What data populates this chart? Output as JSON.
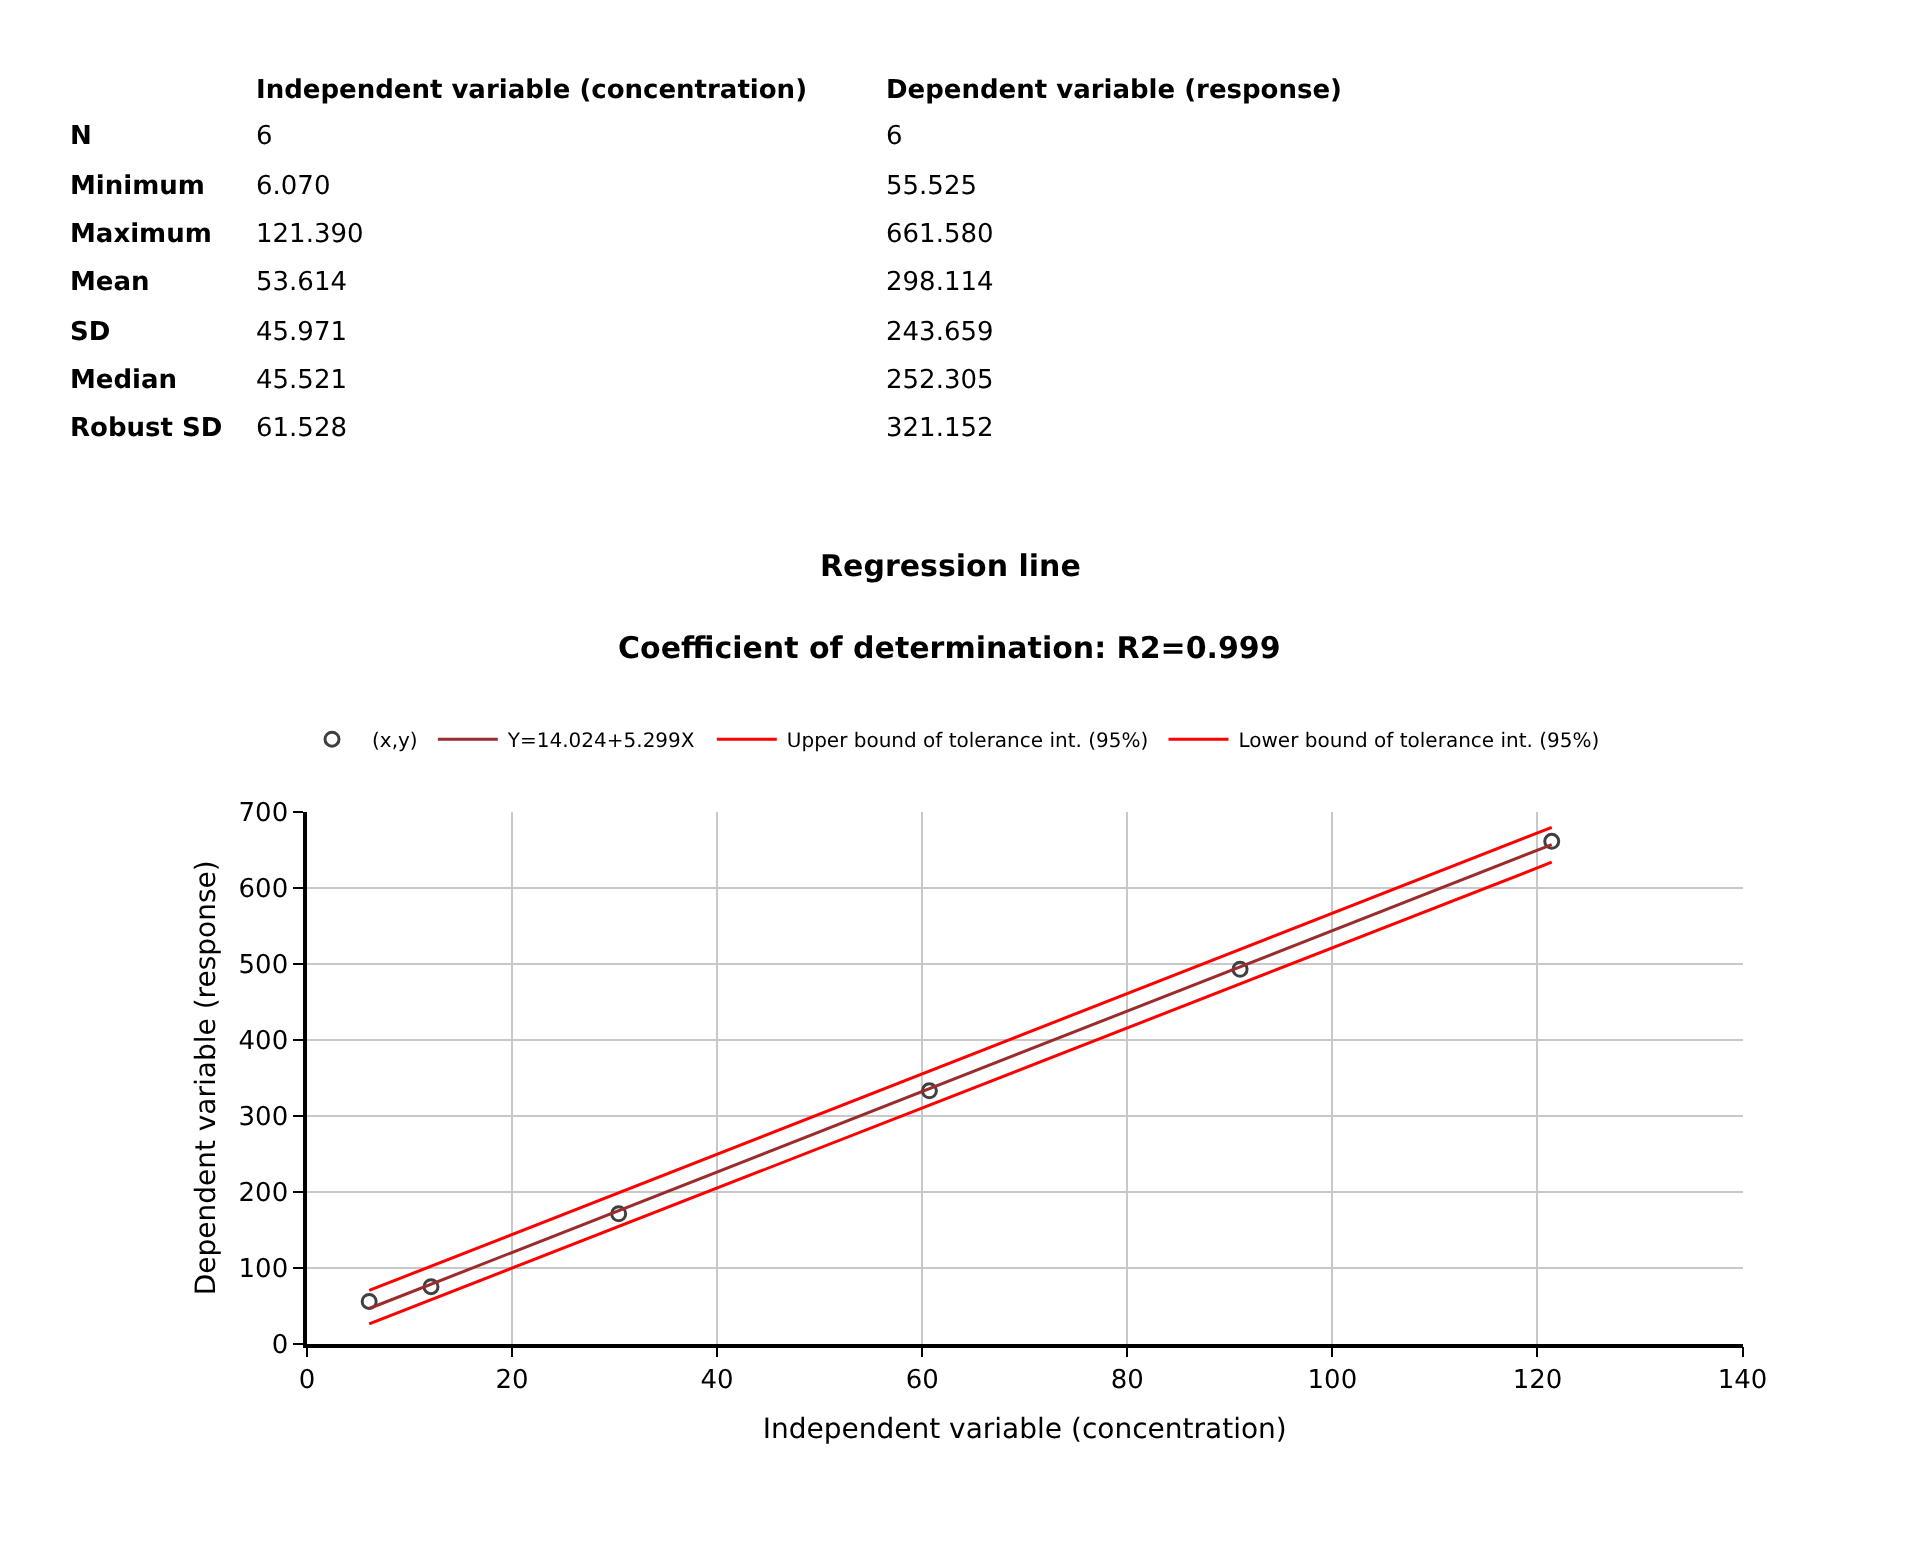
{
  "chart_data": [
    {
      "type": "other",
      "annotations": [
        "Independent variable (concentration)",
        "Dependent variable (response)",
        "N",
        "6",
        "6",
        "Minimum",
        "6.070",
        "55.525",
        "Maximum",
        "121.390",
        "661.580",
        "Mean",
        "53.614",
        "298.114",
        "SD",
        "45.971",
        "243.659",
        "Median",
        "45.521",
        "252.305",
        "Robust SD",
        "61.528",
        "321.152"
      ]
    },
    {
      "type": "scatter",
      "title": "Regression line",
      "subtitle": "Coefficient of determination: R2=0.999",
      "xlabel": "Independent variable (concentration)",
      "ylabel": "Dependent variable (response)",
      "xlim": [
        0,
        140
      ],
      "xticks": [
        0,
        20,
        40,
        60,
        80,
        100,
        120,
        140
      ],
      "ylim": [
        0,
        700
      ],
      "yticks": [
        0,
        100,
        200,
        300,
        400,
        500,
        600,
        700
      ],
      "grid": true,
      "legend": "top",
      "series": [
        {
          "name": "(x,y)",
          "type": "scatter",
          "marker": "circle",
          "color": "#404040",
          "x": [
            6.07,
            12.1,
            30.4,
            60.7,
            91.0,
            121.39
          ],
          "values": [
            55.5,
            75,
            171,
            333,
            493,
            661.6
          ]
        },
        {
          "name": "Y=14.024+5.299X",
          "type": "line",
          "marker": "none",
          "color": "#9b2c2c",
          "x": [
            6.07,
            121.39
          ],
          "values": [
            46.2,
            657.3
          ]
        },
        {
          "name": "Upper bound of tolerance int. (95%)",
          "type": "line",
          "marker": "none",
          "color": "#ff0000",
          "x": [
            6.07,
            121.39
          ],
          "values": [
            70,
            680
          ]
        },
        {
          "name": "Lower bound of tolerance int. (95%)",
          "type": "line",
          "marker": "none",
          "color": "#ff0000",
          "x": [
            6.07,
            121.39
          ],
          "values": [
            26,
            634
          ]
        }
      ]
    }
  ]
}
